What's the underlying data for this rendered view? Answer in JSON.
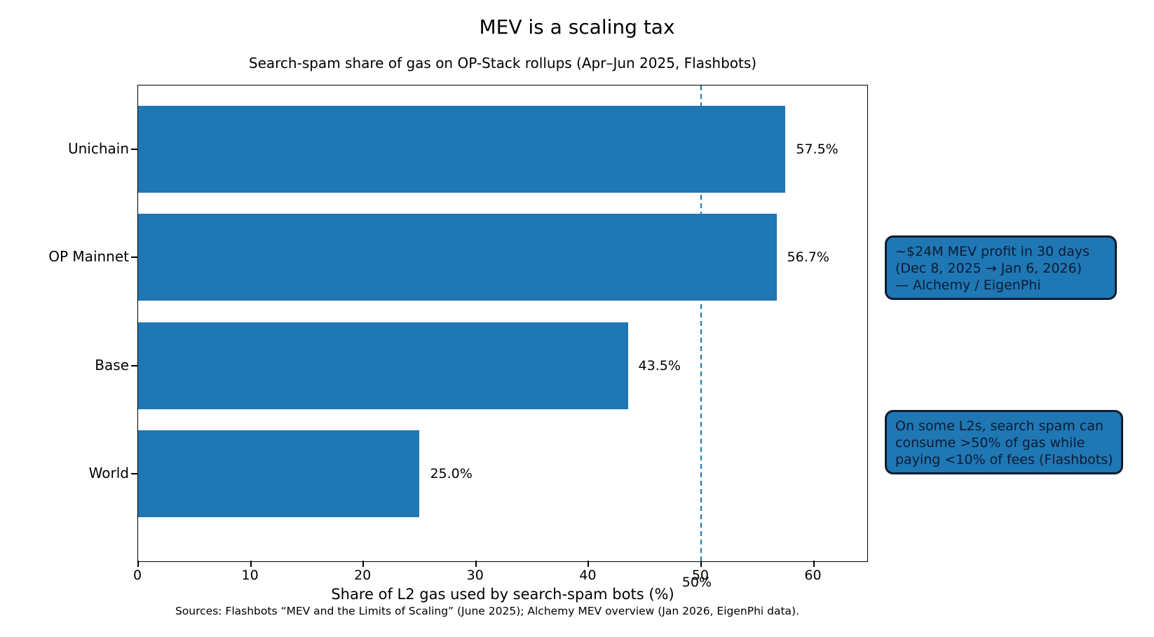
{
  "chart_data": {
    "type": "bar",
    "orientation": "horizontal",
    "title": "MEV is a scaling tax",
    "subtitle": "Search-spam share of gas on OP-Stack rollups (Apr–Jun 2025, Flashbots)",
    "categories": [
      "Unichain",
      "OP Mainnet",
      "Base",
      "World"
    ],
    "values": [
      57.5,
      56.7,
      43.5,
      25.0
    ],
    "value_labels": [
      "57.5%",
      "56.7%",
      "43.5%",
      "25.0%"
    ],
    "xlabel": "Share of L2 gas used by search-spam bots (%)",
    "xlim": [
      0,
      64.7
    ],
    "xticks": [
      0,
      10,
      20,
      30,
      40,
      50,
      60
    ],
    "grid": false,
    "legend": null,
    "bar_color": "#1f77b4",
    "reference_line": {
      "x": 50,
      "label": "50%",
      "style": "dashed",
      "color": "#1f77b4"
    },
    "annotations": [
      {
        "name": "mev-profit",
        "lines": [
          "~$24M MEV profit in 30 days",
          "(Dec 8, 2025 → Jan 6, 2026)",
          "— Alchemy / EigenPhi"
        ]
      },
      {
        "name": "spam-gas-share",
        "lines": [
          "On some L2s, search spam can",
          "consume >50% of gas while",
          "paying <10% of fees (Flashbots)"
        ]
      }
    ],
    "source": "Sources: Flashbots “MEV and the Limits of Scaling” (June 2025); Alchemy MEV overview (Jan 2026, EigenPhi data).",
    "colors": {
      "annotation_fill": "#1f77b4",
      "annotation_border": "#0e1c30",
      "annotation_text": "#0b1c33",
      "axis": "#000000"
    }
  }
}
